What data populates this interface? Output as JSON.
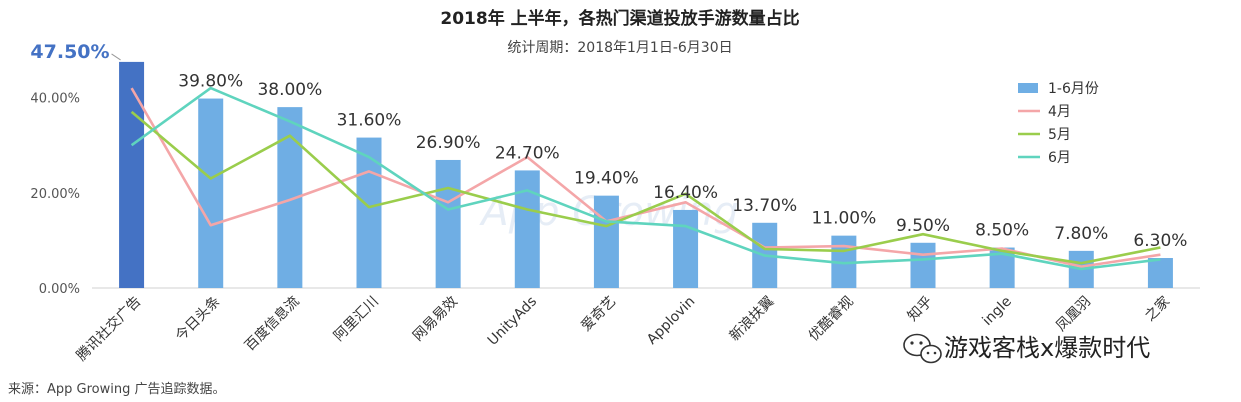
{
  "chart_data": {
    "type": "bar",
    "title": "2018年 上半年，各热门渠道投放手游数量占比",
    "subtitle": "统计周期：2018年1月1日-6月30日",
    "categories": [
      "腾讯社交广告",
      "今日头条",
      "百度信息流",
      "阿里汇川",
      "网易易效",
      "UnityAds",
      "爱奇艺",
      "Applovin",
      "新浪扶翼",
      "优酷睿视",
      "知乎",
      "Mintegral",
      "凤凰",
      "游戏之家"
    ],
    "visible_category_labels": [
      "腾讯社交广告",
      "今日头条",
      "百度信息流",
      "阿里汇川",
      "网易易效",
      "UnityAds",
      "爱奇艺",
      "Applovin",
      "新浪扶翼",
      "优酷睿视",
      "知乎",
      "ingle",
      "凤凰羽",
      "之家"
    ],
    "bar_labels": [
      "47.50%",
      "39.80%",
      "38.00%",
      "31.60%",
      "26.90%",
      "24.70%",
      "19.40%",
      "16.40%",
      "13.70%",
      "11.00%",
      "9.50%",
      "8.50%",
      "7.80%",
      "6.30%"
    ],
    "series": [
      {
        "name": "1-6月份",
        "kind": "bar",
        "color": "#6FAEE4",
        "highlight_color": "#4472C4",
        "values": [
          47.5,
          39.8,
          38.0,
          31.6,
          26.9,
          24.7,
          19.4,
          16.4,
          13.7,
          11.0,
          9.5,
          8.5,
          7.8,
          6.3
        ]
      },
      {
        "name": "4月",
        "kind": "line",
        "color": "#F4A6A8",
        "values": [
          42.0,
          13.2,
          18.5,
          24.5,
          18.0,
          27.5,
          14.0,
          18.0,
          8.5,
          8.8,
          7.0,
          8.3,
          4.5,
          7.0
        ]
      },
      {
        "name": "5月",
        "kind": "line",
        "color": "#9ACD4C",
        "values": [
          37.0,
          23.0,
          32.0,
          17.0,
          21.0,
          16.5,
          13.0,
          19.8,
          8.2,
          7.8,
          11.3,
          7.8,
          5.2,
          8.5
        ]
      },
      {
        "name": "6月",
        "kind": "line",
        "color": "#5FD4BE",
        "values": [
          30.0,
          42.0,
          35.0,
          27.5,
          16.5,
          20.5,
          14.0,
          13.0,
          6.8,
          5.2,
          6.0,
          7.2,
          4.0,
          6.0
        ]
      }
    ],
    "yticks": [
      "0.00%",
      "20.00%",
      "40.00%"
    ],
    "ylim": [
      0,
      50
    ],
    "grid": false,
    "legend_position": "top-right"
  },
  "source_note": "来源：App Growing 广告追踪数据。",
  "watermark": {
    "icon": "wechat-icon",
    "text": "游戏客栈x爆款时代",
    "faded_text": "App Growing"
  }
}
